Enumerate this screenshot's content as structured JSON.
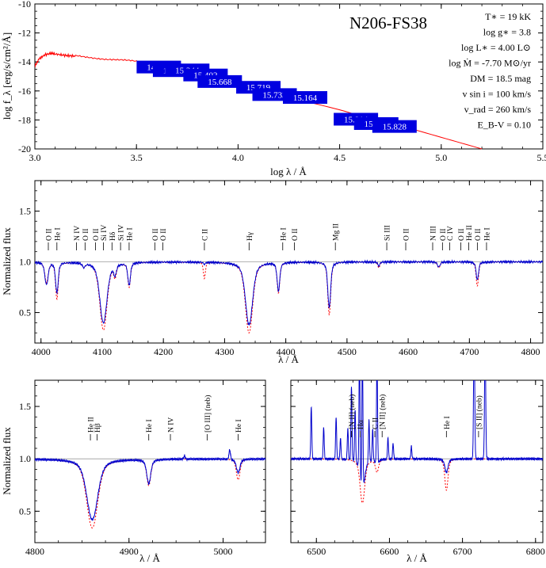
{
  "chart_data": [
    {
      "type": "line",
      "id": "sed",
      "title": "N206-FS38",
      "xlabel": "log λ / Å",
      "ylabel": "log f_λ [erg/s/cm²/Å]",
      "xlim": [
        3.0,
        5.5
      ],
      "ylim": [
        -20,
        -10
      ],
      "xticks": [
        3.0,
        3.5,
        4.0,
        4.5,
        5.0,
        5.5
      ],
      "xtick_labels": [
        "3.0",
        "3.5",
        "4.0",
        "4.5",
        "5.0",
        "5.5"
      ],
      "yticks": [
        -20,
        -18,
        -16,
        -14,
        -12,
        -10
      ],
      "ytick_labels": [
        "-20",
        "-18",
        "-16",
        "-14",
        "-12",
        "-10"
      ],
      "parameters": [
        "T∗ = 19 kK",
        "log g∗ = 3.8",
        "log L∗ = 4.00 L⊙",
        "log Ṁ = -7.70 M⊙/yr",
        "DM = 18.5 mag",
        "v sin i = 100 km/s",
        "v_rad = 260 km/s",
        "E_B-V = 0.10"
      ],
      "model_sed": {
        "x": [
          3.0,
          3.02,
          3.05,
          3.08,
          3.1,
          3.15,
          3.2,
          3.3,
          3.4,
          3.5,
          3.6,
          3.7,
          3.8,
          3.9,
          4.0,
          4.1,
          4.2,
          4.3,
          4.4,
          4.5,
          4.6,
          4.7,
          4.8,
          4.9,
          5.0,
          5.1,
          5.2
        ],
        "y": [
          -14.3,
          -13.8,
          -13.5,
          -13.4,
          -13.45,
          -13.55,
          -13.6,
          -13.7,
          -13.85,
          -14.0,
          -14.3,
          -14.6,
          -14.95,
          -15.3,
          -15.6,
          -15.95,
          -16.25,
          -16.6,
          -16.95,
          -17.3,
          -17.7,
          -18.05,
          -18.4,
          -18.8,
          -19.2,
          -19.6,
          -20.0
        ]
      },
      "photometry": [
        {
          "x": 3.61,
          "y": -14.35,
          "label": "14.665"
        },
        {
          "x": 3.69,
          "y": -14.6,
          "label": "16.034"
        },
        {
          "x": 3.75,
          "y": -14.55,
          "label": "15.344"
        },
        {
          "x": 3.84,
          "y": -14.9,
          "label": "15.402"
        },
        {
          "x": 3.91,
          "y": -15.35,
          "label": "15.668"
        },
        {
          "x": 4.1,
          "y": -15.75,
          "label": "15.719"
        },
        {
          "x": 4.18,
          "y": -16.25,
          "label": "15.733"
        },
        {
          "x": 4.33,
          "y": -16.45,
          "label": "15.164"
        },
        {
          "x": 4.58,
          "y": -17.95,
          "label": "15.914"
        },
        {
          "x": 4.68,
          "y": -18.25,
          "label": "15.829"
        },
        {
          "x": 4.77,
          "y": -18.45,
          "label": "15.828"
        }
      ]
    },
    {
      "type": "line",
      "id": "blue",
      "xlabel": "λ / Å",
      "ylabel": "Normalized flux",
      "xlim": [
        3990,
        4820
      ],
      "ylim": [
        0.2,
        1.8
      ],
      "xticks": [
        4000,
        4100,
        4200,
        4300,
        4400,
        4500,
        4600,
        4700,
        4800
      ],
      "xtick_labels": [
        "4000",
        "4100",
        "4200",
        "4300",
        "4400",
        "4500",
        "4600",
        "4700",
        "4800"
      ],
      "yticks": [
        0.5,
        1.0,
        1.5
      ],
      "ytick_labels": [
        "0.5",
        "1.0",
        "1.5"
      ],
      "lines": [
        {
          "w": 4009,
          "d_obs": 0.22,
          "d_mod": 0.2,
          "s": 2.5
        },
        {
          "w": 4026,
          "d_obs": 0.3,
          "d_mod": 0.36,
          "s": 2.0
        },
        {
          "w": 4070,
          "d_obs": 0.04,
          "d_mod": 0.04,
          "s": 2.0
        },
        {
          "w": 4102,
          "d_obs": 0.6,
          "d_mod": 0.67,
          "s": 5.5
        },
        {
          "w": 4121,
          "d_obs": 0.1,
          "d_mod": 0.12,
          "s": 2.0
        },
        {
          "w": 4144,
          "d_obs": 0.22,
          "d_mod": 0.24,
          "s": 2.0
        },
        {
          "w": 4267,
          "d_obs": 0.02,
          "d_mod": 0.16,
          "s": 1.5
        },
        {
          "w": 4340,
          "d_obs": 0.62,
          "d_mod": 0.7,
          "s": 5.5
        },
        {
          "w": 4388,
          "d_obs": 0.28,
          "d_mod": 0.3,
          "s": 2.0
        },
        {
          "w": 4471,
          "d_obs": 0.45,
          "d_mod": 0.52,
          "s": 2.2
        },
        {
          "w": 4552,
          "d_obs": 0.04,
          "d_mod": 0.06,
          "s": 1.5
        },
        {
          "w": 4650,
          "d_obs": 0.05,
          "d_mod": 0.06,
          "s": 2.0
        },
        {
          "w": 4713,
          "d_obs": 0.18,
          "d_mod": 0.24,
          "s": 1.8
        }
      ],
      "line_ids": [
        {
          "x": 4012,
          "label": "O II"
        },
        {
          "x": 4026,
          "label": "He I"
        },
        {
          "x": 4058,
          "label": "N IV"
        },
        {
          "x": 4072,
          "label": "O II"
        },
        {
          "x": 4089,
          "label": "O II"
        },
        {
          "x": 4102,
          "label": "Si IV"
        },
        {
          "x": 4116,
          "label": "Hδ"
        },
        {
          "x": 4130,
          "label": "Si IV"
        },
        {
          "x": 4144,
          "label": "He I"
        },
        {
          "x": 4186,
          "label": "O II"
        },
        {
          "x": 4199,
          "label": "O II"
        },
        {
          "x": 4267,
          "label": "C II"
        },
        {
          "x": 4340,
          "label": "Hγ"
        },
        {
          "x": 4395,
          "label": "He I"
        },
        {
          "x": 4414,
          "label": "O II"
        },
        {
          "x": 4481,
          "label": "Mg II"
        },
        {
          "x": 4565,
          "label": "Si III"
        },
        {
          "x": 4596,
          "label": "O II"
        },
        {
          "x": 4640,
          "label": "N III"
        },
        {
          "x": 4656,
          "label": "O II"
        },
        {
          "x": 4668,
          "label": "C IV"
        },
        {
          "x": 4686,
          "label": "O II"
        },
        {
          "x": 4699,
          "label": "He II"
        },
        {
          "x": 4713,
          "label": "O II"
        },
        {
          "x": 4728,
          "label": "He I"
        }
      ]
    },
    {
      "type": "line",
      "id": "hbeta",
      "xlabel": "λ / Å",
      "ylabel": "Normalized flux",
      "xlim": [
        4800,
        5045
      ],
      "ylim": [
        0.2,
        1.75
      ],
      "xticks": [
        4800,
        4900,
        5000
      ],
      "xtick_labels": [
        "4800",
        "4900",
        "5000"
      ],
      "yticks": [
        0.5,
        1.0,
        1.5
      ],
      "ytick_labels": [
        "0.5",
        "1.0",
        "1.5"
      ],
      "lines": [
        {
          "w": 4861,
          "d_obs": 0.58,
          "d_mod": 0.66,
          "s": 5.5
        },
        {
          "w": 4921,
          "d_obs": 0.23,
          "d_mod": 0.25,
          "s": 2.0
        },
        {
          "w": 5016,
          "d_obs": 0.13,
          "d_mod": 0.2,
          "s": 1.8
        }
      ],
      "emission": [
        {
          "w": 4959,
          "h": 0.03,
          "s": 0.8
        },
        {
          "w": 5007,
          "h": 0.09,
          "s": 0.8
        }
      ],
      "line_ids": [
        {
          "x": 4859,
          "label": "He II"
        },
        {
          "x": 4866,
          "label": "Hβ"
        },
        {
          "x": 4921,
          "label": "He I"
        },
        {
          "x": 4944,
          "label": "N IV"
        },
        {
          "x": 4983,
          "label": "[O III] (neb)"
        },
        {
          "x": 5016,
          "label": "He I"
        }
      ]
    },
    {
      "type": "line",
      "id": "halpha",
      "xlabel": "λ / Å",
      "ylabel": "",
      "xlim": [
        6465,
        6810
      ],
      "ylim": [
        0.2,
        1.75
      ],
      "xticks": [
        6500,
        6600,
        6700,
        6800
      ],
      "xtick_labels": [
        "6500",
        "6600",
        "6700",
        "6800"
      ],
      "yticks": [
        0.5,
        1.0,
        1.5
      ],
      "ytick_labels": [
        "",
        "",
        ""
      ],
      "lines": [
        {
          "w": 6563,
          "d_obs": 0.3,
          "d_mod": 0.42,
          "s": 3.0
        },
        {
          "w": 6583,
          "d_obs": 0.05,
          "d_mod": 0.12,
          "s": 2.0
        },
        {
          "w": 6678,
          "d_obs": 0.13,
          "d_mod": 0.3,
          "s": 2.0
        }
      ],
      "emission": [
        {
          "w": 6493,
          "h": 0.5,
          "s": 0.7
        },
        {
          "w": 6510,
          "h": 0.3,
          "s": 0.7
        },
        {
          "w": 6527,
          "h": 0.4,
          "s": 0.7
        },
        {
          "w": 6533,
          "h": 0.2,
          "s": 0.7
        },
        {
          "w": 6543,
          "h": 0.3,
          "s": 0.7
        },
        {
          "w": 6548,
          "h": 0.7,
          "s": 0.7
        },
        {
          "w": 6553,
          "h": 0.5,
          "s": 0.7
        },
        {
          "w": 6559,
          "h": 1.2,
          "s": 0.7
        },
        {
          "w": 6563,
          "h": 1.3,
          "s": 0.7
        },
        {
          "w": 6572,
          "h": 0.4,
          "s": 0.7
        },
        {
          "w": 6577,
          "h": 0.3,
          "s": 0.7
        },
        {
          "w": 6583,
          "h": 1.0,
          "s": 0.7
        },
        {
          "w": 6598,
          "h": 0.2,
          "s": 0.7
        },
        {
          "w": 6605,
          "h": 0.15,
          "s": 0.7
        },
        {
          "w": 6630,
          "h": 0.12,
          "s": 0.7
        },
        {
          "w": 6716,
          "h": 1.2,
          "s": 0.8
        },
        {
          "w": 6731,
          "h": 1.1,
          "s": 0.8
        }
      ],
      "line_ids": [
        {
          "x": 6548,
          "label": "[N II] (neb)"
        },
        {
          "x": 6560,
          "label": "Hα"
        },
        {
          "x": 6580,
          "label": "C II"
        },
        {
          "x": 6590,
          "label": "[N II] (neb)"
        },
        {
          "x": 6678,
          "label": "He I"
        },
        {
          "x": 6722,
          "label": "[S II] (neb)"
        }
      ]
    }
  ]
}
